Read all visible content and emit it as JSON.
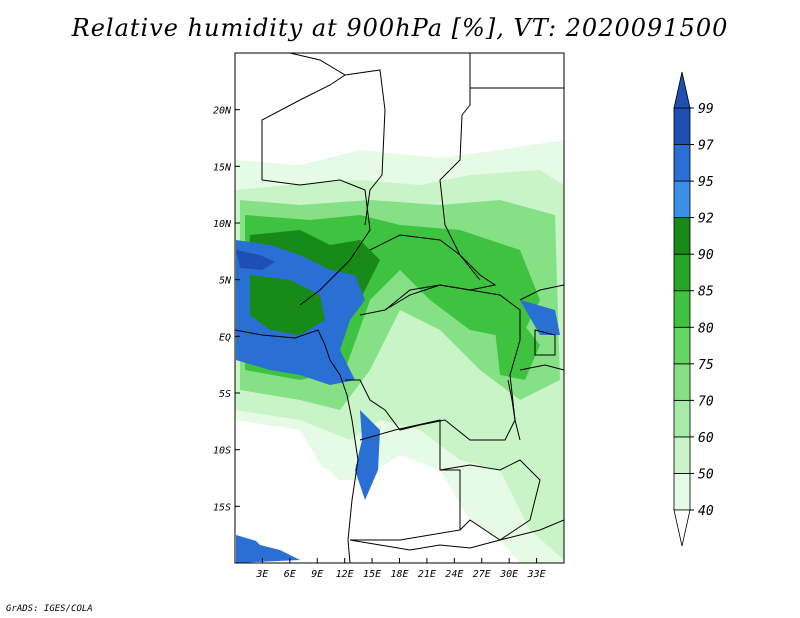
{
  "title": "Relative humidity at 900hPa [%], VT: 2020091500",
  "footer": "GrADS: IGES/COLA",
  "map": {
    "lon_min": 0,
    "lon_max": 36,
    "lat_min": -20,
    "lat_max": 25,
    "x_ticks": [
      {
        "value": 3,
        "label": "3E"
      },
      {
        "value": 6,
        "label": "6E"
      },
      {
        "value": 9,
        "label": "9E"
      },
      {
        "value": 12,
        "label": "12E"
      },
      {
        "value": 15,
        "label": "15E"
      },
      {
        "value": 18,
        "label": "18E"
      },
      {
        "value": 21,
        "label": "21E"
      },
      {
        "value": 24,
        "label": "24E"
      },
      {
        "value": 27,
        "label": "27E"
      },
      {
        "value": 30,
        "label": "30E"
      },
      {
        "value": 33,
        "label": "33E"
      }
    ],
    "y_ticks": [
      {
        "value": 20,
        "label": "20N"
      },
      {
        "value": 15,
        "label": "15N"
      },
      {
        "value": 10,
        "label": "10N"
      },
      {
        "value": 5,
        "label": "5N"
      },
      {
        "value": 0,
        "label": "EQ"
      },
      {
        "value": -5,
        "label": "5S"
      },
      {
        "value": -10,
        "label": "10S"
      },
      {
        "value": -15,
        "label": "15S"
      }
    ]
  },
  "colorbar": {
    "levels": [
      "40",
      "50",
      "60",
      "70",
      "75",
      "80",
      "85",
      "90",
      "92",
      "95",
      "97",
      "99"
    ],
    "colors": [
      "#ffffff",
      "#e6fbe6",
      "#c8f4c8",
      "#a6eca6",
      "#86e186",
      "#64d664",
      "#3fc23f",
      "#26a626",
      "#178a17",
      "#3c8fe6",
      "#2a6fd4",
      "#1f4fb3"
    ],
    "lower_arrow_color": "#ffffff",
    "upper_arrow_color": "#1f4fb3"
  }
}
